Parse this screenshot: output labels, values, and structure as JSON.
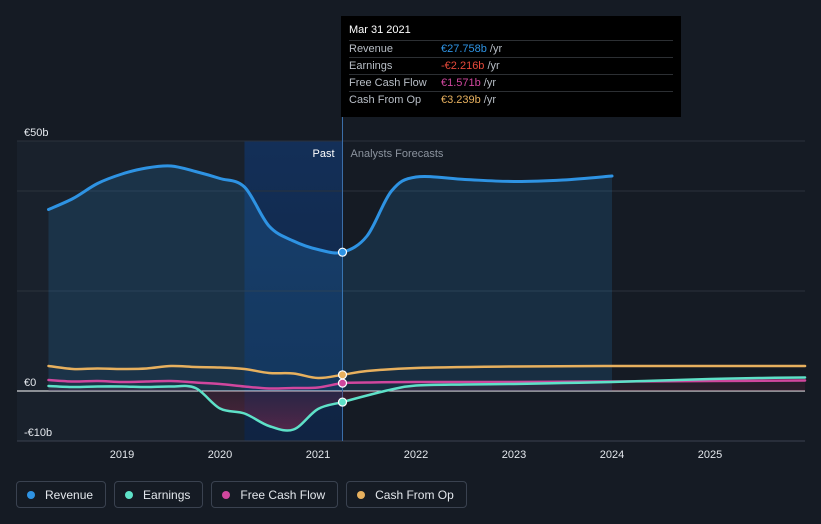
{
  "chart_data": {
    "type": "line",
    "y_unit": "€ billions",
    "y_ticks": [
      {
        "value": 50,
        "label": "€50b"
      },
      {
        "value": 0,
        "label": "€0"
      },
      {
        "value": -10,
        "label": "-€10b"
      }
    ],
    "ylim": [
      -10,
      50
    ],
    "xlim": [
      2018.25,
      2025.97
    ],
    "x_ticks": [
      2019,
      2020,
      2021,
      2022,
      2023,
      2024,
      2025
    ],
    "divider_x": 2021.25,
    "highlight_range": [
      2020.25,
      2021.25
    ],
    "past_label": "Past",
    "forecast_label": "Analysts Forecasts",
    "grid": true,
    "legend_position": "bottom-left",
    "series": [
      {
        "name": "Revenue",
        "color": "#2e93e3",
        "points": [
          [
            2018.25,
            36.3
          ],
          [
            2018.5,
            38.5
          ],
          [
            2018.75,
            41.5
          ],
          [
            2019.0,
            43.4
          ],
          [
            2019.25,
            44.6
          ],
          [
            2019.5,
            45.0
          ],
          [
            2019.75,
            43.9
          ],
          [
            2020.0,
            42.5
          ],
          [
            2020.25,
            40.8
          ],
          [
            2020.5,
            33.0
          ],
          [
            2020.75,
            30.0
          ],
          [
            2021.0,
            28.3
          ],
          [
            2021.25,
            27.758
          ],
          [
            2021.5,
            31.0
          ],
          [
            2021.75,
            40.0
          ],
          [
            2022.0,
            42.8
          ],
          [
            2022.5,
            42.3
          ],
          [
            2023.0,
            41.9
          ],
          [
            2023.5,
            42.2
          ],
          [
            2024.0,
            43.0
          ]
        ]
      },
      {
        "name": "Earnings",
        "color": "#5ee1c8",
        "points": [
          [
            2018.25,
            1.0
          ],
          [
            2018.5,
            0.8
          ],
          [
            2018.75,
            0.9
          ],
          [
            2019.0,
            0.9
          ],
          [
            2019.25,
            0.8
          ],
          [
            2019.5,
            0.9
          ],
          [
            2019.75,
            0.6
          ],
          [
            2020.0,
            -3.5
          ],
          [
            2020.25,
            -4.5
          ],
          [
            2020.5,
            -7.0
          ],
          [
            2020.75,
            -7.7
          ],
          [
            2021.0,
            -3.6
          ],
          [
            2021.25,
            -2.216
          ],
          [
            2021.5,
            -0.9
          ],
          [
            2021.75,
            0.3
          ],
          [
            2022.0,
            1.1
          ],
          [
            2022.5,
            1.3
          ],
          [
            2023.0,
            1.4
          ],
          [
            2023.5,
            1.6
          ],
          [
            2024.0,
            1.8
          ],
          [
            2024.5,
            2.1
          ],
          [
            2025.0,
            2.4
          ],
          [
            2025.5,
            2.6
          ],
          [
            2025.97,
            2.7
          ]
        ]
      },
      {
        "name": "Free Cash Flow",
        "color": "#d0479e",
        "points": [
          [
            2018.25,
            2.2
          ],
          [
            2018.5,
            1.9
          ],
          [
            2018.75,
            2.0
          ],
          [
            2019.0,
            1.8
          ],
          [
            2019.25,
            1.9
          ],
          [
            2019.5,
            2.0
          ],
          [
            2019.75,
            1.7
          ],
          [
            2020.0,
            1.4
          ],
          [
            2020.25,
            0.9
          ],
          [
            2020.5,
            0.5
          ],
          [
            2020.75,
            0.6
          ],
          [
            2021.0,
            0.7
          ],
          [
            2021.25,
            1.571
          ],
          [
            2021.5,
            1.7
          ],
          [
            2022.0,
            1.8
          ],
          [
            2023.0,
            1.8
          ],
          [
            2024.0,
            1.9
          ],
          [
            2025.0,
            2.0
          ],
          [
            2025.97,
            2.1
          ]
        ]
      },
      {
        "name": "Cash From Op",
        "color": "#e7b05e",
        "points": [
          [
            2018.25,
            5.0
          ],
          [
            2018.5,
            4.4
          ],
          [
            2018.75,
            4.5
          ],
          [
            2019.0,
            4.4
          ],
          [
            2019.25,
            4.5
          ],
          [
            2019.5,
            5.0
          ],
          [
            2019.75,
            4.8
          ],
          [
            2020.0,
            4.7
          ],
          [
            2020.25,
            4.4
          ],
          [
            2020.5,
            3.6
          ],
          [
            2020.75,
            3.5
          ],
          [
            2021.0,
            2.6
          ],
          [
            2021.25,
            3.239
          ],
          [
            2021.5,
            4.0
          ],
          [
            2022.0,
            4.6
          ],
          [
            2023.0,
            4.9
          ],
          [
            2024.0,
            5.0
          ],
          [
            2025.0,
            5.0
          ],
          [
            2025.97,
            5.0
          ]
        ]
      }
    ]
  },
  "tooltip": {
    "date": "Mar 31 2021",
    "rows": [
      {
        "label": "Revenue",
        "value": "€27.758b",
        "unit": "/yr",
        "color": "#2e93e3"
      },
      {
        "label": "Earnings",
        "value": "-€2.216b",
        "unit": "/yr",
        "color": "#e5493a"
      },
      {
        "label": "Free Cash Flow",
        "value": "€1.571b",
        "unit": "/yr",
        "color": "#d0479e"
      },
      {
        "label": "Cash From Op",
        "value": "€3.239b",
        "unit": "/yr",
        "color": "#e7b05e"
      }
    ]
  },
  "legend": [
    {
      "label": "Revenue",
      "color": "#2e93e3"
    },
    {
      "label": "Earnings",
      "color": "#5ee1c8"
    },
    {
      "label": "Free Cash Flow",
      "color": "#d0479e"
    },
    {
      "label": "Cash From Op",
      "color": "#e7b05e"
    }
  ]
}
